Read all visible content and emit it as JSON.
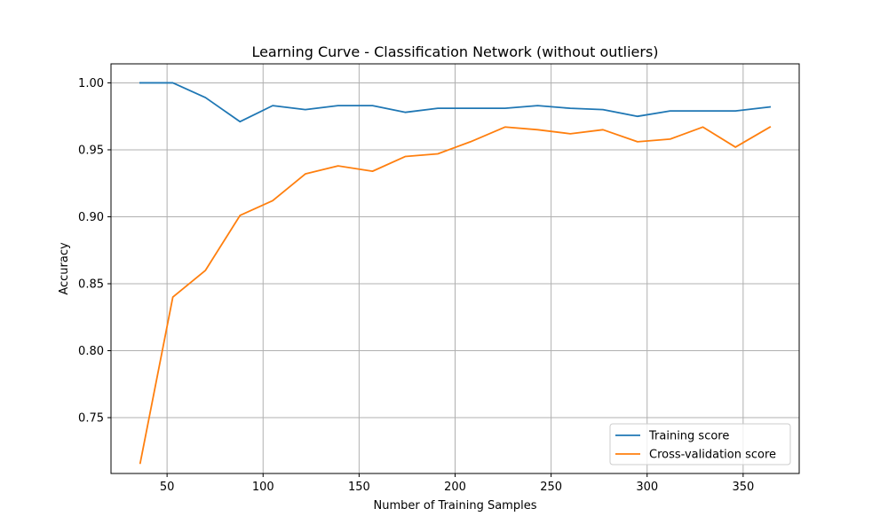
{
  "chart_data": {
    "type": "line",
    "title": "Learning Curve - Classification Network (without outliers)",
    "xlabel": "Number of Training Samples",
    "ylabel": "Accuracy",
    "xlim": [
      20.8,
      379.2
    ],
    "ylim": [
      0.7083,
      1.0142
    ],
    "xticks": [
      50,
      100,
      150,
      200,
      250,
      300,
      350
    ],
    "yticks": [
      0.75,
      0.8,
      0.85,
      0.9,
      0.95,
      1.0
    ],
    "ytick_labels": [
      "0.75",
      "0.80",
      "0.85",
      "0.90",
      "0.95",
      "1.00"
    ],
    "grid": true,
    "legend_position": "lower-right",
    "x": [
      36,
      53,
      70,
      88,
      105,
      122,
      139,
      157,
      174,
      191,
      208,
      226,
      243,
      260,
      277,
      295,
      312,
      329,
      346,
      364
    ],
    "series": [
      {
        "name": "Training score",
        "color": "#1f77b4",
        "values": [
          1.0,
          1.0,
          0.989,
          0.971,
          0.983,
          0.98,
          0.983,
          0.983,
          0.978,
          0.981,
          0.981,
          0.981,
          0.983,
          0.981,
          0.98,
          0.975,
          0.979,
          0.979,
          0.979,
          0.982
        ]
      },
      {
        "name": "Cross-validation score",
        "color": "#ff7f0e",
        "values": [
          0.716,
          0.84,
          0.86,
          0.901,
          0.912,
          0.932,
          0.938,
          0.934,
          0.945,
          0.947,
          0.956,
          0.967,
          0.965,
          0.962,
          0.965,
          0.956,
          0.958,
          0.967,
          0.952,
          0.967
        ]
      }
    ]
  }
}
